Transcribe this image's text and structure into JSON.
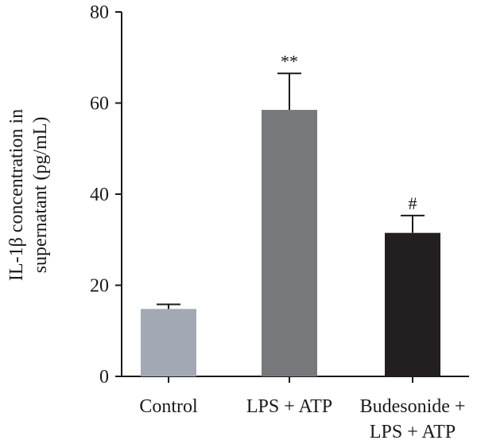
{
  "chart_data": {
    "type": "bar",
    "ylabel_lines": [
      "IL-1β concentration in",
      "supernatant (pg/mL)"
    ],
    "ylim": [
      0,
      80
    ],
    "yticks": [
      "0",
      "20",
      "40",
      "60",
      "80"
    ],
    "grid": false,
    "categories": [
      [
        "Control"
      ],
      [
        "LPS + ATP"
      ],
      [
        "Budesonide +",
        "LPS + ATP"
      ]
    ],
    "values": [
      14.8,
      58.5,
      31.5
    ],
    "errors": [
      1.0,
      8.0,
      3.8
    ],
    "significance": [
      "",
      "**",
      "#"
    ],
    "colors": [
      "#a2a9b4",
      "#76787b",
      "#231f20"
    ]
  }
}
